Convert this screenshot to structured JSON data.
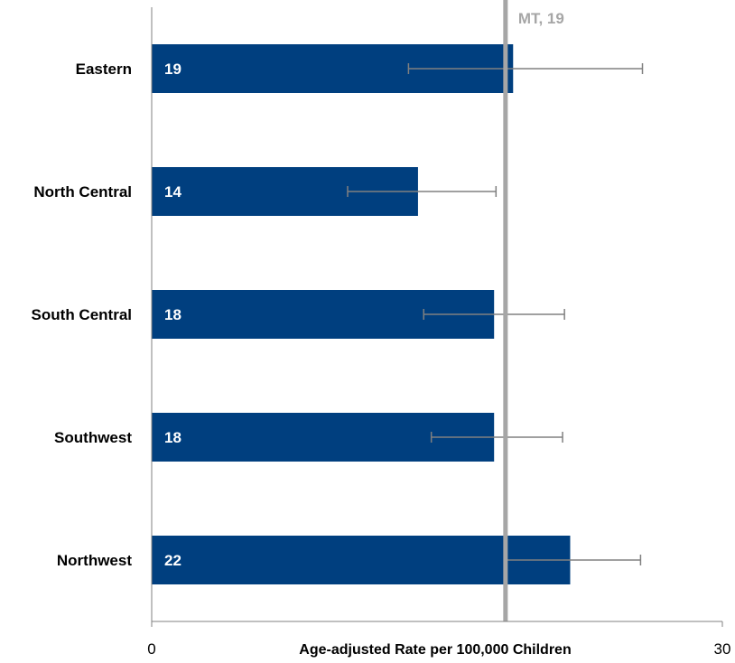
{
  "chart_data": {
    "type": "bar",
    "orientation": "horizontal",
    "categories": [
      "Eastern",
      "North Central",
      "South Central",
      "Southwest",
      "Northwest"
    ],
    "values": [
      19,
      14,
      18,
      18,
      22
    ],
    "bar_value_labels": [
      "19",
      "14",
      "18",
      "18",
      "22"
    ],
    "error_bars": [
      {
        "low": 13.5,
        "high": 25.8
      },
      {
        "low": 10.3,
        "high": 18.1
      },
      {
        "low": 14.3,
        "high": 21.7
      },
      {
        "low": 14.7,
        "high": 21.6
      },
      {
        "low": 18.6,
        "high": 25.7
      }
    ],
    "reference_line": {
      "value": 18.6,
      "label": "MT, 19"
    },
    "xlabel": "Age-adjusted Rate per 100,000 Children",
    "ylabel": "",
    "title": "",
    "xlim": [
      0,
      30
    ],
    "tick_labels": [
      "0",
      "30"
    ],
    "grid": false,
    "legend": "none",
    "colors": {
      "bar": "#003f7f",
      "error_bar": "#808080",
      "reference_line": "#a6a6a6",
      "axis": "#808080",
      "bar_label": "#ffffff"
    }
  }
}
